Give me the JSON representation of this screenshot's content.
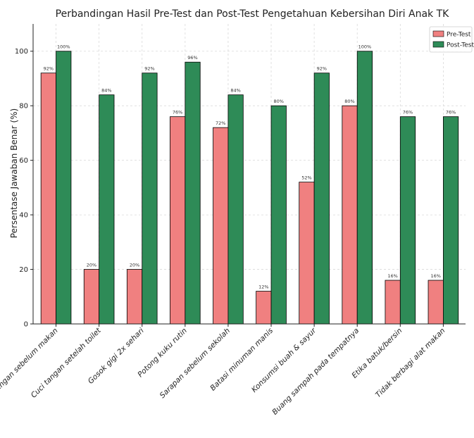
{
  "chart_data": {
    "type": "bar",
    "title": "Perbandingan Hasil Pre-Test dan Post-Test Pengetahuan Kebersihan Diri Anak TK",
    "xlabel": "",
    "ylabel": "Persentase Jawaban Benar (%)",
    "ylim": [
      0,
      110
    ],
    "yticks": [
      0,
      20,
      40,
      60,
      80,
      100
    ],
    "grid": true,
    "legend_position": "top-right",
    "categories": [
      "Cuci tangan sebelum makan",
      "Cuci tangan setelah toilet",
      "Gosok gigi 2x sehari",
      "Potong kuku rutin",
      "Sarapan sebelum sekolah",
      "Batasi minuman manis",
      "Konsumsi buah & sayur",
      "Buang sampah pada tempatnya",
      "Etika batuk/bersin",
      "Tidak berbagi alat makan"
    ],
    "series": [
      {
        "name": "Pre-Test",
        "color": "#f08080",
        "values": [
          92,
          20,
          20,
          76,
          72,
          12,
          52,
          80,
          16,
          16
        ]
      },
      {
        "name": "Post-Test",
        "color": "#2e8b57",
        "values": [
          100,
          84,
          92,
          96,
          84,
          80,
          92,
          100,
          76,
          76
        ]
      }
    ],
    "value_suffix": "%"
  }
}
